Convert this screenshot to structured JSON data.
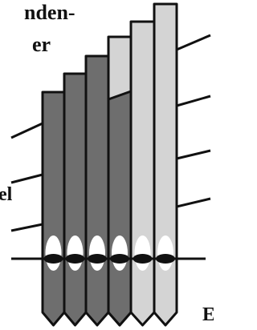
{
  "labels": {
    "top_line_1": "nden-",
    "top_line_2": "er",
    "left": "el",
    "bottom_right": "E"
  }
}
